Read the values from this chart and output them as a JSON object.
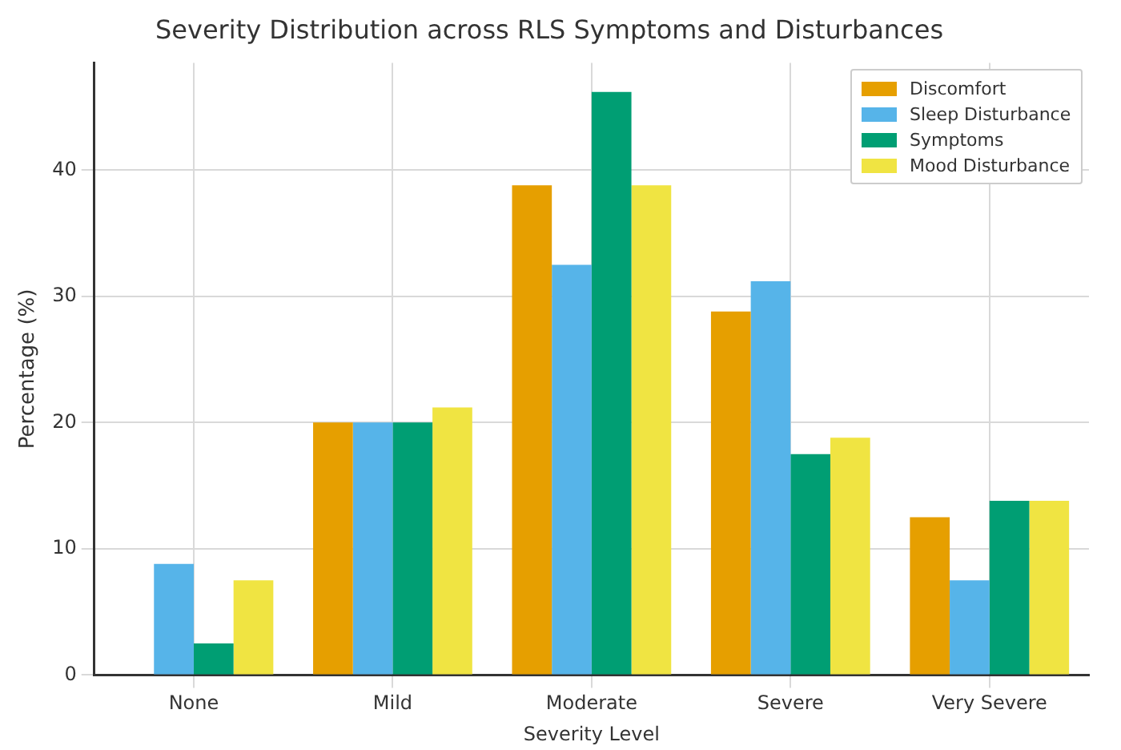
{
  "chart_data": {
    "type": "bar",
    "title": "Severity Distribution across RLS Symptoms and Disturbances",
    "xlabel": "Severity Level",
    "ylabel": "Percentage (%)",
    "categories": [
      "None",
      "Mild",
      "Moderate",
      "Severe",
      "Very Severe"
    ],
    "series": [
      {
        "name": "Discomfort",
        "color": "#e69f00",
        "values": [
          0,
          20,
          38.8,
          28.8,
          12.5
        ]
      },
      {
        "name": "Sleep Disturbance",
        "color": "#56b4e9",
        "values": [
          8.8,
          20,
          32.5,
          31.2,
          7.5
        ]
      },
      {
        "name": "Symptoms",
        "color": "#009e73",
        "values": [
          2.5,
          20,
          46.2,
          17.5,
          13.8
        ]
      },
      {
        "name": "Mood Disturbance",
        "color": "#f0e442",
        "values": [
          7.5,
          21.2,
          38.8,
          18.8,
          13.8
        ]
      }
    ],
    "ylim": [
      0,
      48.5
    ],
    "yticks": [
      0,
      10,
      20,
      30,
      40
    ],
    "grid": true,
    "legend": "top right"
  }
}
